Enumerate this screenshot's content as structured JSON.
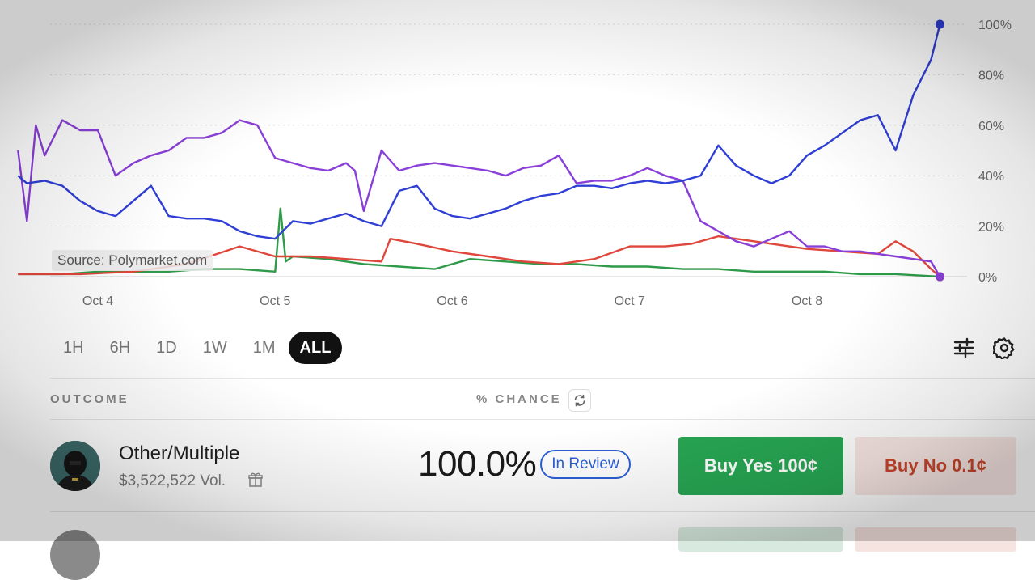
{
  "source_note": "Source: Polymarket.com",
  "chart_data": {
    "type": "line",
    "x_tick_labels": [
      "Oct 4",
      "Oct 5",
      "Oct 6",
      "Oct 7",
      "Oct 8"
    ],
    "y_tick_labels": [
      "100%",
      "80%",
      "60%",
      "40%",
      "20%",
      "0%"
    ],
    "ylim": [
      0,
      100
    ],
    "grid": "horizontal dotted",
    "series": [
      {
        "color": "#2f3fd6",
        "x": [
          3.55,
          3.6,
          3.7,
          3.8,
          3.9,
          4.0,
          4.1,
          4.2,
          4.3,
          4.4,
          4.5,
          4.6,
          4.7,
          4.8,
          4.9,
          5.0,
          5.1,
          5.2,
          5.3,
          5.4,
          5.5,
          5.6,
          5.7,
          5.8,
          5.9,
          6.0,
          6.1,
          6.2,
          6.3,
          6.4,
          6.5,
          6.6,
          6.7,
          6.8,
          6.9,
          7.0,
          7.1,
          7.2,
          7.3,
          7.4,
          7.5,
          7.6,
          7.7,
          7.8,
          7.9,
          8.0,
          8.1,
          8.2,
          8.3,
          8.4,
          8.5,
          8.6,
          8.7,
          8.75
        ],
        "values": [
          40,
          37,
          38,
          36,
          30,
          26,
          24,
          30,
          36,
          24,
          23,
          23,
          22,
          18,
          16,
          15,
          22,
          21,
          23,
          25,
          22,
          20,
          34,
          36,
          27,
          24,
          23,
          25,
          27,
          30,
          32,
          33,
          36,
          36,
          35,
          37,
          38,
          37,
          38,
          40,
          52,
          44,
          40,
          37,
          40,
          48,
          52,
          57,
          62,
          64,
          50,
          72,
          86,
          100
        ]
      },
      {
        "color": "#8a3fd8",
        "x": [
          3.55,
          3.6,
          3.65,
          3.7,
          3.8,
          3.9,
          4.0,
          4.1,
          4.2,
          4.3,
          4.4,
          4.5,
          4.6,
          4.7,
          4.8,
          4.9,
          5.0,
          5.1,
          5.2,
          5.3,
          5.4,
          5.45,
          5.5,
          5.6,
          5.7,
          5.8,
          5.9,
          6.0,
          6.1,
          6.2,
          6.3,
          6.4,
          6.5,
          6.6,
          6.7,
          6.8,
          6.9,
          7.0,
          7.1,
          7.2,
          7.3,
          7.35,
          7.4,
          7.5,
          7.6,
          7.7,
          7.8,
          7.9,
          8.0,
          8.1,
          8.2,
          8.3,
          8.4,
          8.5,
          8.6,
          8.7,
          8.75
        ],
        "values": [
          50,
          22,
          60,
          48,
          62,
          58,
          58,
          40,
          45,
          48,
          50,
          55,
          55,
          57,
          62,
          60,
          47,
          45,
          43,
          42,
          45,
          42,
          26,
          50,
          42,
          44,
          45,
          44,
          43,
          42,
          40,
          43,
          44,
          48,
          37,
          38,
          38,
          40,
          43,
          40,
          38,
          30,
          22,
          18,
          14,
          12,
          15,
          18,
          12,
          12,
          10,
          10,
          9,
          8,
          7,
          6,
          0
        ]
      },
      {
        "color": "#e0473c",
        "x": [
          3.55,
          3.7,
          3.9,
          4.2,
          4.5,
          4.8,
          5.0,
          5.2,
          5.4,
          5.6,
          5.65,
          5.8,
          6.0,
          6.2,
          6.4,
          6.6,
          6.8,
          7.0,
          7.2,
          7.35,
          7.4,
          7.5,
          7.6,
          7.7,
          7.8,
          7.9,
          8.0,
          8.2,
          8.4,
          8.5,
          8.6,
          8.7,
          8.75
        ],
        "values": [
          1,
          1,
          1,
          2,
          5,
          12,
          8,
          8,
          7,
          6,
          15,
          13,
          10,
          8,
          6,
          5,
          7,
          12,
          12,
          13,
          14,
          16,
          15,
          14,
          13,
          12,
          11,
          10,
          9,
          14,
          10,
          3,
          0
        ]
      },
      {
        "color": "#2f9a4a",
        "x": [
          3.55,
          3.8,
          4.0,
          4.2,
          4.4,
          4.6,
          4.8,
          5.0,
          5.03,
          5.06,
          5.1,
          5.3,
          5.5,
          5.7,
          5.9,
          6.1,
          6.3,
          6.5,
          6.7,
          6.9,
          7.1,
          7.3,
          7.5,
          7.7,
          7.9,
          8.1,
          8.3,
          8.5,
          8.75
        ],
        "values": [
          1,
          1,
          2,
          2,
          2,
          3,
          3,
          2,
          27,
          6,
          8,
          7,
          5,
          4,
          3,
          7,
          6,
          5,
          5,
          4,
          4,
          3,
          3,
          2,
          2,
          2,
          1,
          1,
          0
        ]
      }
    ]
  },
  "time_ranges": [
    "1H",
    "6H",
    "1D",
    "1W",
    "1M",
    "ALL"
  ],
  "active_range": "ALL",
  "table": {
    "outcome_header": "OUTCOME",
    "chance_header": "% CHANCE",
    "rows": [
      {
        "name": "Other/Multiple",
        "volume": "$3,522,522 Vol.",
        "chance": "100.0%",
        "status": "In Review",
        "buy_yes": "Buy Yes 100¢",
        "buy_no": "Buy No 0.1¢"
      }
    ]
  },
  "icons": [
    "sliders-icon",
    "gear-icon",
    "refresh-icon",
    "gift-icon",
    "avatar"
  ]
}
